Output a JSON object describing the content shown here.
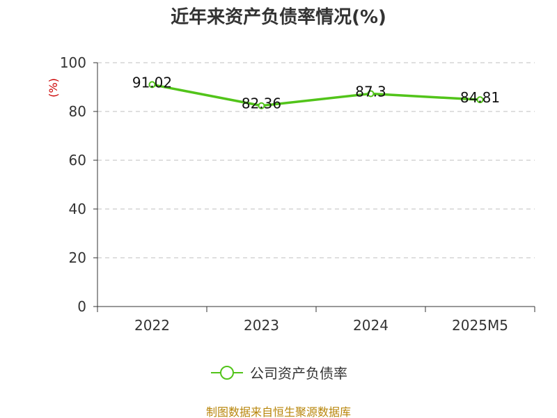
{
  "chart_data": {
    "type": "line",
    "title": "近年来资产负债率情况(%)",
    "xlabel": "",
    "ylabel": "(%)",
    "categories": [
      "2022",
      "2023",
      "2024",
      "2025M5"
    ],
    "series": [
      {
        "name": "公司资产负债率",
        "values": [
          91.02,
          82.36,
          87.3,
          84.81
        ],
        "labels": [
          "91.02",
          "82.36",
          "87.3",
          "84.81"
        ],
        "color": "#52c41a"
      }
    ],
    "ylim": [
      0,
      100
    ],
    "yticks": [
      "0",
      "20",
      "40",
      "60",
      "80",
      "100"
    ],
    "grid": "dashed horizontal",
    "legend_position": "bottom",
    "ylabel_color": "#cc0000"
  },
  "source": "制图数据来自恒生聚源数据库"
}
